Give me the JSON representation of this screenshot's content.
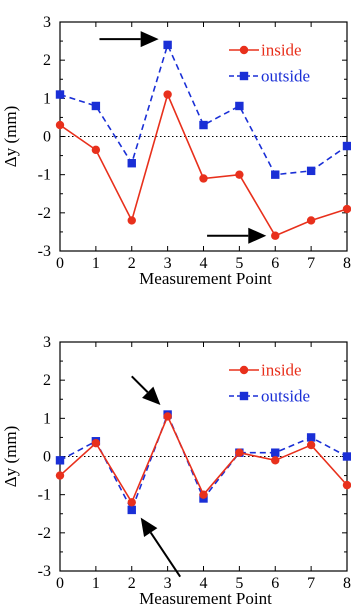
{
  "chart_data": [
    {
      "type": "line",
      "xlabel": "Measurement Point",
      "ylabel": "Δy (mm)",
      "xlim": [
        0,
        8
      ],
      "ylim": [
        -3,
        3
      ],
      "x": [
        0,
        1,
        2,
        3,
        4,
        5,
        6,
        7,
        8
      ],
      "x_ticks": [
        "0",
        "1",
        "2",
        "3",
        "4",
        "5",
        "6",
        "7",
        "8"
      ],
      "y_ticks": [
        "3",
        "2",
        "1",
        "0",
        "-1",
        "-2",
        "-3"
      ],
      "zero_line": true,
      "legend_position": "top-right",
      "series": [
        {
          "name": "inside",
          "color": "#e8301c",
          "marker": "circle",
          "line": "solid",
          "values": [
            0.3,
            -0.35,
            -2.2,
            1.1,
            -1.1,
            -1.0,
            -2.6,
            -2.2,
            -1.9
          ]
        },
        {
          "name": "outside",
          "color": "#1a2fd6",
          "marker": "square",
          "line": "dashed",
          "values": [
            1.1,
            0.8,
            -0.7,
            2.4,
            0.3,
            0.8,
            -1.0,
            -0.9,
            -0.25
          ]
        }
      ],
      "arrows": [
        {
          "from": [
            1.1,
            2.55
          ],
          "to": [
            2.75,
            2.55
          ]
        },
        {
          "from": [
            4.1,
            -2.6
          ],
          "to": [
            5.75,
            -2.6
          ]
        }
      ]
    },
    {
      "type": "line",
      "xlabel": "Measurement Point",
      "ylabel": "Δy (mm)",
      "xlim": [
        0,
        8
      ],
      "ylim": [
        -3,
        3
      ],
      "x": [
        0,
        1,
        2,
        3,
        4,
        5,
        6,
        7,
        8
      ],
      "x_ticks": [
        "0",
        "1",
        "2",
        "3",
        "4",
        "5",
        "6",
        "7",
        "8"
      ],
      "y_ticks": [
        "3",
        "2",
        "1",
        "0",
        "-1",
        "-2",
        "-3"
      ],
      "zero_line": true,
      "legend_position": "top-right",
      "series": [
        {
          "name": "inside",
          "color": "#e8301c",
          "marker": "circle",
          "line": "solid",
          "values": [
            -0.5,
            0.35,
            -1.2,
            1.05,
            -1.0,
            0.1,
            -0.1,
            0.3,
            -0.75
          ]
        },
        {
          "name": "outside",
          "color": "#1a2fd6",
          "marker": "square",
          "line": "dashed",
          "values": [
            -0.1,
            0.4,
            -1.4,
            1.1,
            -1.1,
            0.1,
            0.1,
            0.5,
            0.0
          ]
        }
      ],
      "arrows": [
        {
          "from": [
            2.0,
            2.1
          ],
          "to": [
            2.8,
            1.35
          ]
        },
        {
          "from": [
            3.35,
            -3.15
          ],
          "to": [
            2.25,
            -1.6
          ]
        }
      ]
    }
  ]
}
